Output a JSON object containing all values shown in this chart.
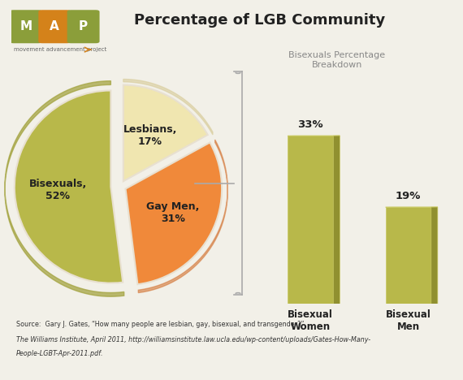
{
  "title": "Percentage of LGB Community",
  "pie_labels": [
    "Lesbians,\n17%",
    "Gay Men,\n31%",
    "Bisexuals,\n52%"
  ],
  "pie_values": [
    17,
    31,
    52
  ],
  "pie_colors": [
    "#f0e6b0",
    "#f0893a",
    "#b8b84a"
  ],
  "pie_explode": [
    0.06,
    0.06,
    0.1
  ],
  "bar_categories": [
    "Bisexual\nWomen",
    "Bisexual\nMen"
  ],
  "bar_values": [
    33,
    19
  ],
  "bar_color": "#b8b84a",
  "bar_color_light": "#d4d47a",
  "bar_color_dark": "#909030",
  "bar_labels": [
    "33%",
    "19%"
  ],
  "breakdown_title": "Bisexuals Percentage\nBreakdown",
  "source_line1": "Source:  Gary J. Gates, “How many people are lesbian, gay, bisexual, and transgender?”",
  "source_line2": "The Williams Institute, April 2011, http://williamsinstitute.law.ucla.edu/wp-content/uploads/Gates-How-Many-",
  "source_line3": "People-LGBT-Apr-2011.pdf.",
  "background_color": "#f2f0e8",
  "map_m_color": "#8b9e3a",
  "map_a_color": "#d4821a",
  "map_p_color": "#8b9e3a"
}
